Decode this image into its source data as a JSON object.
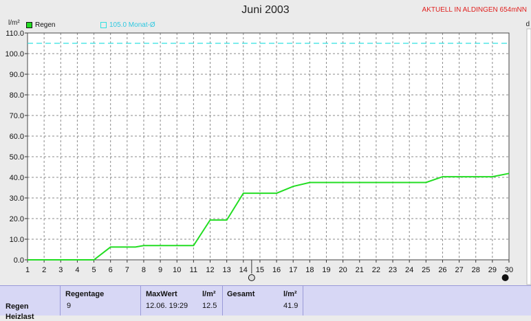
{
  "chart_data": {
    "type": "line",
    "title": "Juni 2003",
    "subtitle": "AKTUELL IN ALDINGEN 654mNN",
    "ylabel": "l/m²",
    "right_axis_label": "d",
    "ylim": [
      0,
      110
    ],
    "yticks": [
      "0.0",
      "10.0",
      "20.0",
      "30.0",
      "40.0",
      "50.0",
      "60.0",
      "70.0",
      "80.0",
      "90.0",
      "100.0",
      "110.0"
    ],
    "xticks": [
      "1",
      "2",
      "3",
      "4",
      "5",
      "6",
      "7",
      "8",
      "9",
      "10",
      "11",
      "12",
      "13",
      "14",
      "15",
      "16",
      "17",
      "18",
      "19",
      "20",
      "21",
      "22",
      "23",
      "24",
      "25",
      "26",
      "27",
      "28",
      "29",
      "30"
    ],
    "xlim": [
      1,
      30
    ],
    "grid": true,
    "legend_position": "top-left",
    "series": [
      {
        "name": "Regen",
        "color": "#22dd22",
        "x": [
          1,
          2,
          3,
          4,
          5,
          6,
          7,
          7.5,
          8,
          9,
          10,
          11,
          12,
          13,
          14,
          15,
          16,
          17,
          18,
          19,
          20,
          21,
          22,
          23,
          24,
          25,
          26,
          27,
          28,
          29,
          30
        ],
        "y": [
          0,
          0,
          0,
          0,
          0,
          6.2,
          6.2,
          6.2,
          6.9,
          6.9,
          6.9,
          6.9,
          19.3,
          19.3,
          32.3,
          32.3,
          32.3,
          35.6,
          37.5,
          37.5,
          37.5,
          37.5,
          37.5,
          37.5,
          37.5,
          37.5,
          40.3,
          40.3,
          40.3,
          40.3,
          41.9
        ]
      }
    ],
    "reference_line": {
      "name": "105.0 Monat-Ø",
      "value": 105.0,
      "color": "#2ee0e0"
    }
  },
  "legend": {
    "regen": "Regen",
    "monat": "105.0 Monat-Ø",
    "regen_color": "#22dd22",
    "monat_color": "#2ee0e0"
  },
  "stats": {
    "row_label": "Regen",
    "row_label_2": "Heizlast",
    "regentage_label": "Regentage",
    "regentage_value": "9",
    "maxwert_label": "MaxWert",
    "maxwert_unit": "l/m²",
    "maxwert_time": "12.06.  19:29",
    "maxwert_value": "12.5",
    "gesamt_label": "Gesamt",
    "gesamt_unit": "l/m²",
    "gesamt_value": "41.9"
  }
}
